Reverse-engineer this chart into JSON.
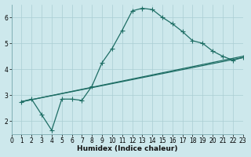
{
  "xlabel": "Humidex (Indice chaleur)",
  "bg_color": "#cde8ec",
  "grid_color": "#aacdd3",
  "line_color": "#1e6e65",
  "xlim": [
    0,
    23
  ],
  "ylim": [
    1.5,
    6.5
  ],
  "xticks": [
    0,
    1,
    2,
    3,
    4,
    5,
    6,
    7,
    8,
    9,
    10,
    11,
    12,
    13,
    14,
    15,
    16,
    17,
    18,
    19,
    20,
    21,
    22,
    23
  ],
  "yticks": [
    2,
    3,
    4,
    5,
    6
  ],
  "line1_x": [
    1,
    2,
    3,
    4,
    5,
    6,
    7,
    8,
    9,
    10,
    11,
    12,
    13,
    14,
    15,
    16,
    17,
    18,
    19,
    20,
    21,
    22,
    23
  ],
  "line1_y": [
    2.75,
    2.85,
    2.25,
    1.65,
    2.85,
    2.85,
    2.8,
    3.35,
    4.25,
    4.8,
    5.5,
    6.25,
    6.35,
    6.3,
    6.0,
    5.75,
    5.45,
    5.1,
    5.0,
    4.7,
    4.5,
    4.35,
    4.45
  ],
  "line2_x": [
    1,
    23
  ],
  "line2_y": [
    2.75,
    4.5
  ],
  "line3_x": [
    1,
    23
  ],
  "line3_y": [
    2.75,
    4.45
  ],
  "markersize": 2.5,
  "linewidth": 0.9
}
